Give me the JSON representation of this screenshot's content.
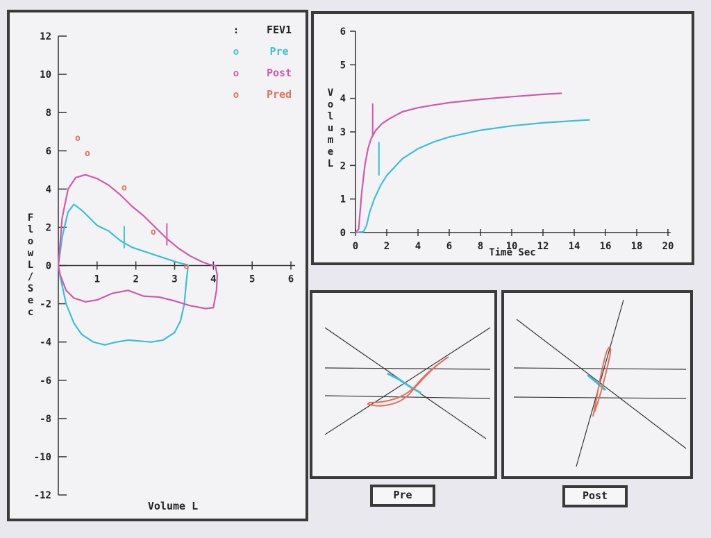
{
  "colors": {
    "pre": "#3bbfd6",
    "post": "#d05aa6",
    "pred": "#e0705e",
    "axis": "#333333",
    "frame": "#3a3a3a"
  },
  "legend": {
    "fev1": {
      "marker": ":",
      "label": "FEV1"
    },
    "pre": {
      "marker": "o",
      "label": "Pre"
    },
    "post": {
      "marker": "o",
      "label": "Post"
    },
    "pred": {
      "marker": "o",
      "label": "Pred"
    }
  },
  "buttons": {
    "pre": "Pre",
    "post": "Post"
  },
  "chart_data": [
    {
      "type": "line",
      "xlabel": "Volume L",
      "ylabel": "Flow L/Sec",
      "xlim": [
        0,
        6
      ],
      "ylim": [
        -12,
        12
      ],
      "xticks": [
        1,
        2,
        3,
        4,
        5,
        6
      ],
      "yticks": [
        12,
        10,
        8,
        6,
        4,
        2,
        0,
        -2,
        -4,
        -6,
        -8,
        -10,
        -12
      ],
      "legend_position": "top-right",
      "series": [
        {
          "name": "Pre",
          "x": [
            0,
            0.1,
            0.25,
            0.4,
            0.6,
            0.8,
            1.0,
            1.3,
            1.6,
            1.9,
            2.2,
            2.5,
            2.8,
            3.1,
            3.3,
            3.35,
            3.3,
            3.25,
            3.15,
            3.0,
            2.7,
            2.4,
            2.1,
            1.8,
            1.5,
            1.2,
            0.9,
            0.6,
            0.4,
            0.2,
            0.05,
            0
          ],
          "y": [
            0,
            1.5,
            2.8,
            3.2,
            2.9,
            2.5,
            2.1,
            1.8,
            1.3,
            0.95,
            0.75,
            0.55,
            0.35,
            0.15,
            0.05,
            0,
            -0.9,
            -2.0,
            -2.9,
            -3.5,
            -3.9,
            -4.0,
            -3.95,
            -3.9,
            -4.0,
            -4.15,
            -4.0,
            -3.6,
            -3.0,
            -2.0,
            -0.6,
            0
          ]
        },
        {
          "name": "Post",
          "x": [
            0,
            0.1,
            0.25,
            0.45,
            0.7,
            1.0,
            1.3,
            1.6,
            1.9,
            2.2,
            2.5,
            2.8,
            3.1,
            3.4,
            3.7,
            3.9,
            4.05,
            4.1,
            4.08,
            4.0,
            3.8,
            3.4,
            3.0,
            2.6,
            2.2,
            1.8,
            1.4,
            1.0,
            0.7,
            0.4,
            0.2,
            0.05,
            0
          ],
          "y": [
            0,
            2.5,
            4.0,
            4.6,
            4.75,
            4.55,
            4.2,
            3.7,
            3.1,
            2.6,
            2.0,
            1.4,
            0.9,
            0.5,
            0.2,
            0.05,
            0,
            -0.5,
            -1.3,
            -2.2,
            -2.25,
            -2.1,
            -1.85,
            -1.65,
            -1.6,
            -1.3,
            -1.45,
            -1.8,
            -1.9,
            -1.7,
            -1.3,
            -0.5,
            0
          ]
        }
      ],
      "pred_points": {
        "x": [
          0.5,
          0.75,
          1.7,
          2.45,
          3.3
        ],
        "y": [
          6.7,
          5.9,
          4.1,
          1.8,
          0
        ]
      },
      "fev1_marks": [
        {
          "series": "Pre",
          "x": 1.7,
          "y": 0.9
        },
        {
          "series": "Post",
          "x": 2.8,
          "y": 1.05
        }
      ]
    },
    {
      "type": "line",
      "xlabel": "Time Sec",
      "ylabel": "Volume L",
      "xlim": [
        0,
        20
      ],
      "ylim": [
        0,
        6
      ],
      "xticks": [
        0,
        2,
        4,
        6,
        8,
        10,
        12,
        14,
        16,
        18,
        20
      ],
      "yticks": [
        0,
        1,
        2,
        3,
        4,
        5,
        6
      ],
      "series": [
        {
          "name": "Pre",
          "x": [
            0,
            0.5,
            0.7,
            0.9,
            1.2,
            1.6,
            2.0,
            3.0,
            4.0,
            5.0,
            6.0,
            8.0,
            10.0,
            12.0,
            14.0,
            15.0
          ],
          "y": [
            0,
            0.02,
            0.2,
            0.6,
            1.0,
            1.4,
            1.7,
            2.2,
            2.5,
            2.7,
            2.85,
            3.05,
            3.18,
            3.27,
            3.33,
            3.36
          ]
        },
        {
          "name": "Post",
          "x": [
            0,
            0.2,
            0.4,
            0.6,
            0.8,
            1.0,
            1.3,
            1.7,
            2.2,
            3.0,
            4.0,
            5.0,
            6.0,
            8.0,
            10.0,
            12.0,
            13.2
          ],
          "y": [
            0,
            0.1,
            1.2,
            2.0,
            2.5,
            2.8,
            3.05,
            3.25,
            3.4,
            3.6,
            3.72,
            3.8,
            3.87,
            3.97,
            4.05,
            4.12,
            4.15
          ]
        }
      ],
      "fev1_marks": [
        {
          "series": "Post",
          "x": 1.1,
          "y_from": 2.9,
          "y_to": 3.85
        },
        {
          "series": "Pre",
          "x": 1.5,
          "y_from": 1.7,
          "y_to": 2.7
        }
      ]
    }
  ]
}
